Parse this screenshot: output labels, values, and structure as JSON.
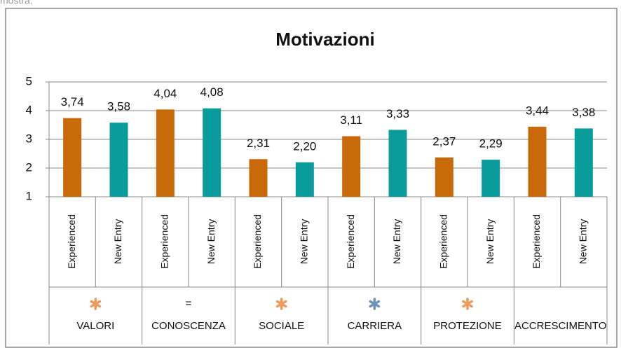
{
  "header_fragment": "mostra.",
  "chart_data": {
    "type": "bar",
    "title": "Motivazioni",
    "categories": [
      "VALORI",
      "CONOSCENZA",
      "SOCIALE",
      "CARRIERA",
      "PROTEZIONE",
      "ACCRESCIMENTO"
    ],
    "series": [
      {
        "name": "Experienced",
        "color": "#c96a0a",
        "values": [
          3.74,
          4.04,
          2.31,
          3.11,
          2.37,
          3.44
        ],
        "value_labels": [
          "3,74",
          "4,04",
          "2,31",
          "3,11",
          "2,37",
          "3,44"
        ]
      },
      {
        "name": "New Entry",
        "color": "#0a9b9b",
        "values": [
          3.58,
          4.08,
          2.2,
          3.33,
          2.29,
          3.38
        ],
        "value_labels": [
          "3,58",
          "4,08",
          "2,20",
          "3,33",
          "2,29",
          "3,38"
        ]
      }
    ],
    "annotations": [
      {
        "symbol_color": "#ee9a5a"
      },
      {
        "symbol": "="
      },
      {
        "symbol_color": "#ee9a5a"
      },
      {
        "symbol_color": "#6f93b8"
      },
      {
        "symbol_color": "#ee9a5a"
      },
      {}
    ],
    "ylim": [
      1,
      5
    ],
    "yticks": [
      1,
      2,
      3,
      4,
      5
    ],
    "grid": true
  }
}
